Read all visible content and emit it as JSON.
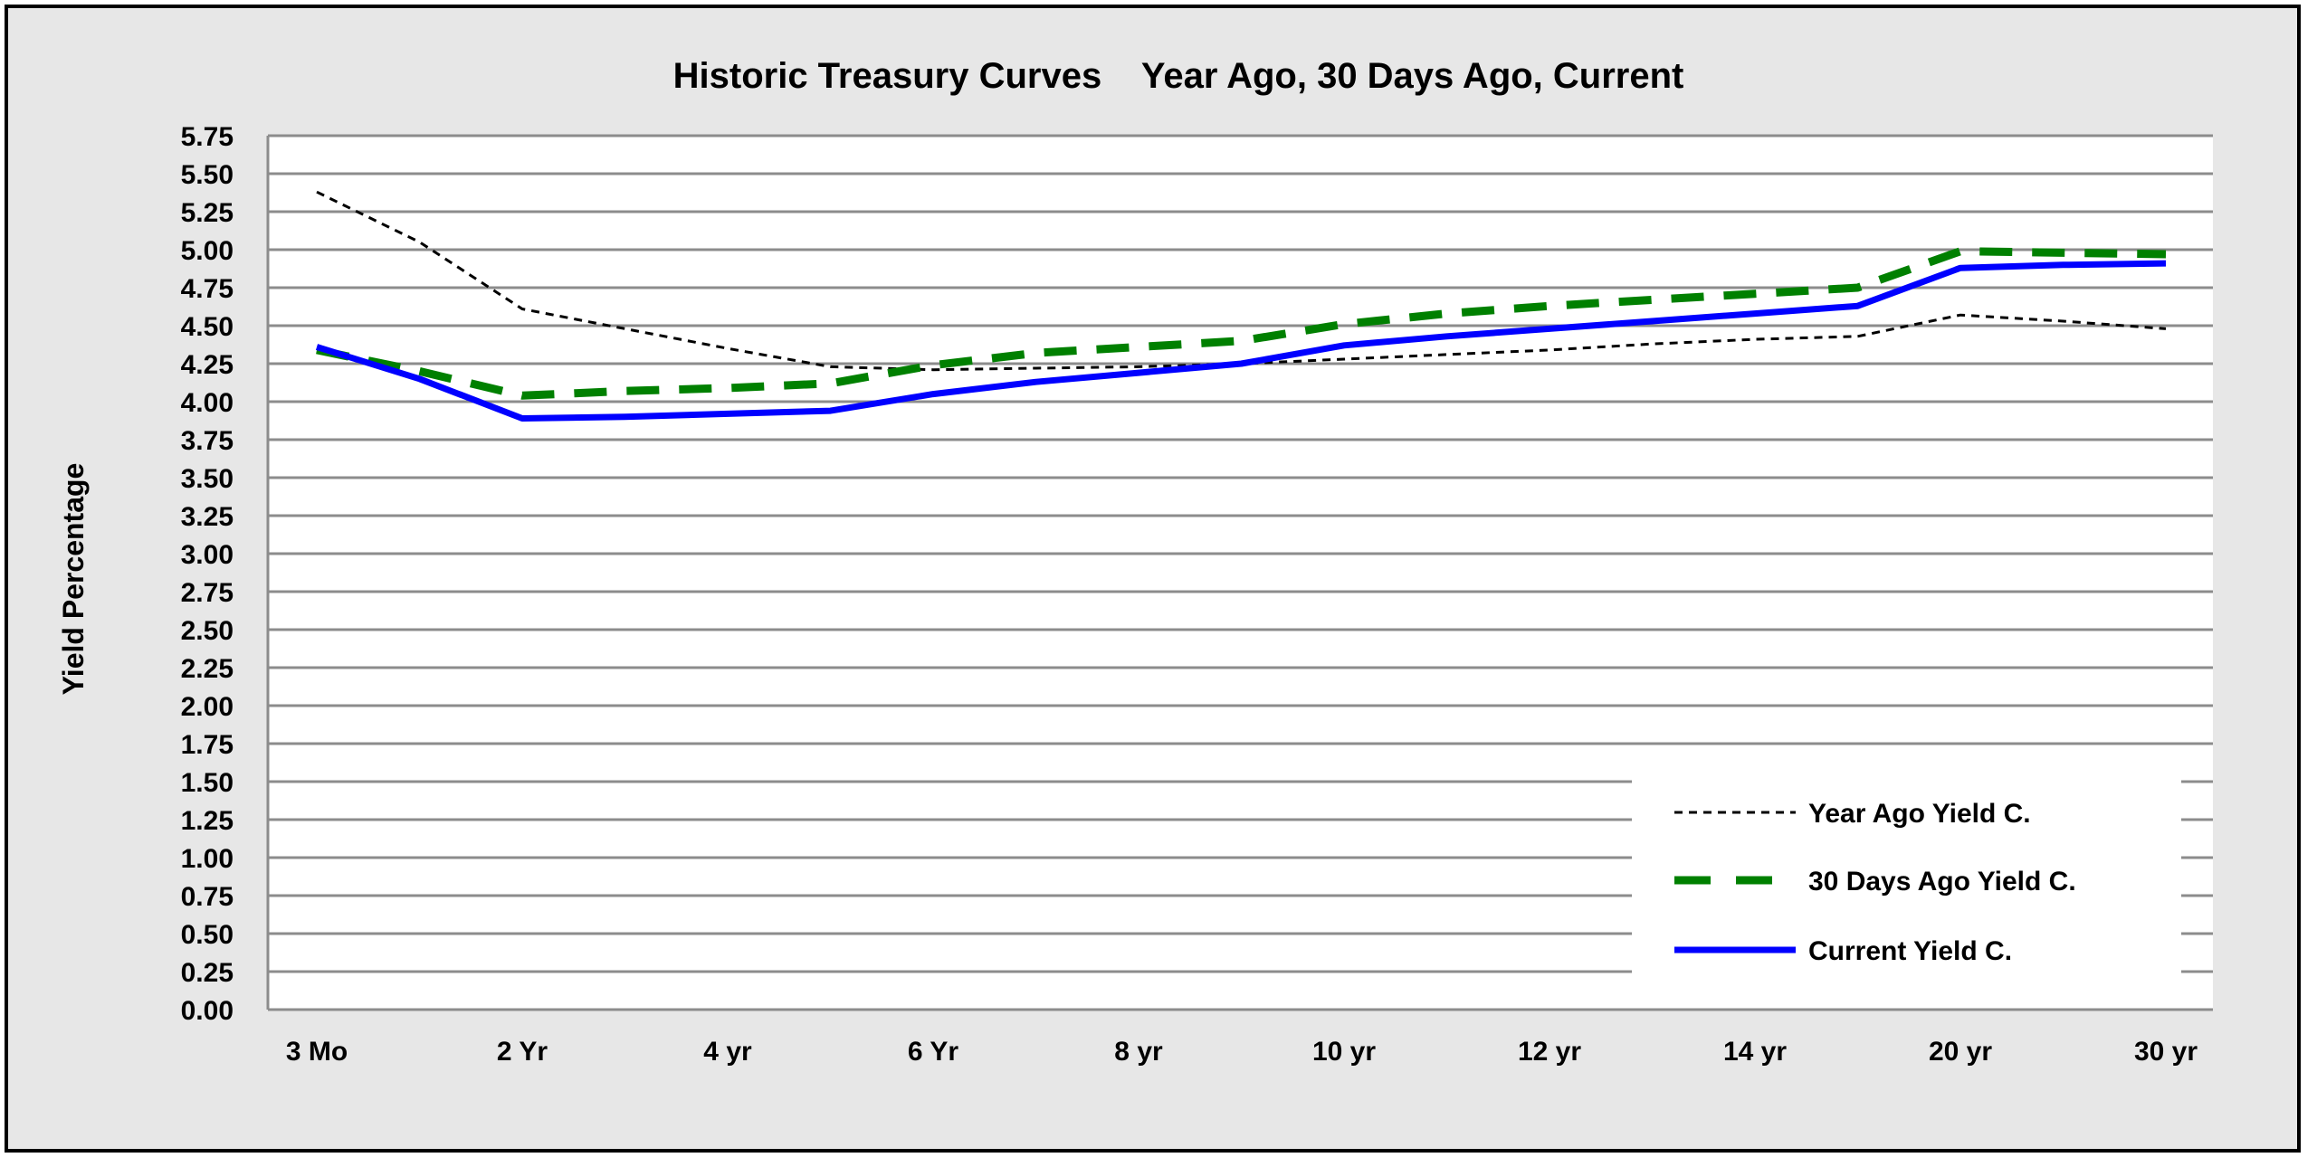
{
  "chart_data": {
    "type": "line",
    "title": "Historic Treasury Curves    Year Ago, 30 Days Ago, Current",
    "xlabel": "",
    "ylabel": "Yield Percentage",
    "categories": [
      "3 Mo",
      "",
      "2 Yr",
      "",
      "4 yr",
      "",
      "6 Yr",
      "",
      "8 yr",
      "",
      "10 yr",
      "",
      "12 yr",
      "",
      "14 yr",
      "",
      "20 yr",
      "",
      "30 yr"
    ],
    "x_tick_labels": [
      "3 Mo",
      "2 Yr",
      "4 yr",
      "6 Yr",
      "8 yr",
      "10 yr",
      "12 yr",
      "14 yr",
      "20 yr",
      "30 yr"
    ],
    "y_tick_labels": [
      "0.00",
      "0.25",
      "0.50",
      "0.75",
      "1.00",
      "1.25",
      "1.50",
      "1.75",
      "2.00",
      "2.25",
      "2.50",
      "2.75",
      "3.00",
      "3.25",
      "3.50",
      "3.75",
      "4.00",
      "4.25",
      "4.50",
      "4.75",
      "5.00",
      "5.25",
      "5.50",
      "5.75"
    ],
    "ylim": [
      0,
      5.75
    ],
    "y_step": 0.25,
    "grid": "horizontal",
    "legend_position": "bottom-right",
    "series": [
      {
        "name": "Year Ago Yield C.",
        "color": "#000000",
        "style": "dotted",
        "values": [
          5.38,
          5.05,
          4.61,
          4.48,
          4.35,
          4.23,
          4.21,
          4.22,
          4.23,
          4.25,
          4.28,
          4.31,
          4.34,
          4.38,
          4.41,
          4.43,
          4.57,
          4.53,
          4.48
        ]
      },
      {
        "name": "30 Days Ago Yield C.",
        "color": "#008000",
        "style": "dashed",
        "values": [
          4.34,
          4.2,
          4.04,
          4.07,
          4.09,
          4.12,
          4.24,
          4.32,
          4.36,
          4.4,
          4.51,
          4.58,
          4.63,
          4.67,
          4.71,
          4.75,
          4.99,
          4.98,
          4.97
        ]
      },
      {
        "name": "Current Yield C.",
        "color": "#0000ff",
        "style": "solid",
        "values": [
          4.36,
          4.15,
          3.89,
          3.9,
          3.92,
          3.94,
          4.05,
          4.13,
          4.19,
          4.25,
          4.37,
          4.43,
          4.48,
          4.53,
          4.58,
          4.63,
          4.88,
          4.9,
          4.91
        ]
      }
    ]
  }
}
